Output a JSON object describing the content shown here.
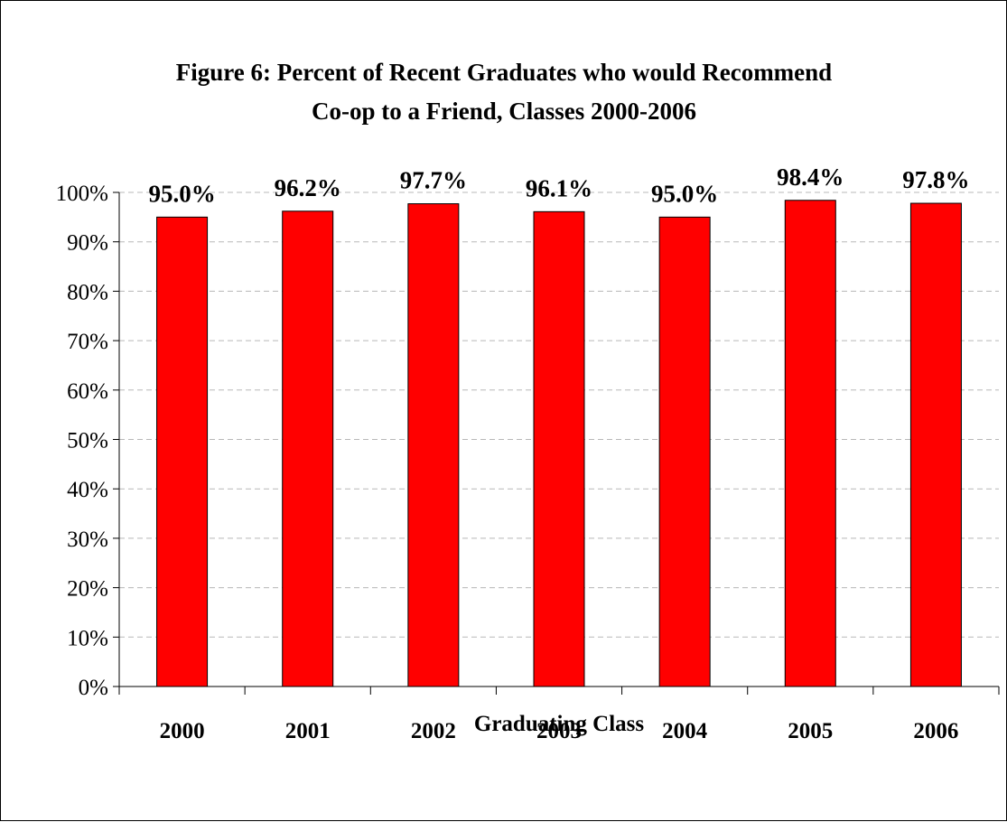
{
  "chart_data": {
    "type": "bar",
    "title_lines": [
      "Figure 6:  Percent of Recent Graduates who would Recommend",
      "Co-op to a Friend, Classes 2000-2006"
    ],
    "xlabel": "Graduating Class",
    "ylabel": "",
    "categories": [
      "2000",
      "2001",
      "2002",
      "2003",
      "2004",
      "2005",
      "2006"
    ],
    "values": [
      95.0,
      96.2,
      97.7,
      96.1,
      95.0,
      98.4,
      97.8
    ],
    "data_labels": [
      "95.0%",
      "96.2%",
      "97.7%",
      "96.1%",
      "95.0%",
      "98.4%",
      "97.8%"
    ],
    "ylim": [
      0,
      100
    ],
    "y_ticks": [
      0,
      10,
      20,
      30,
      40,
      50,
      60,
      70,
      80,
      90,
      100
    ],
    "y_tick_labels": [
      "0%",
      "10%",
      "20%",
      "30%",
      "40%",
      "50%",
      "60%",
      "70%",
      "80%",
      "90%",
      "100%"
    ],
    "grid": "horizontal dashed",
    "legend": "none",
    "bar_color": "#ff0000",
    "bar_edge_color": "#000000"
  }
}
